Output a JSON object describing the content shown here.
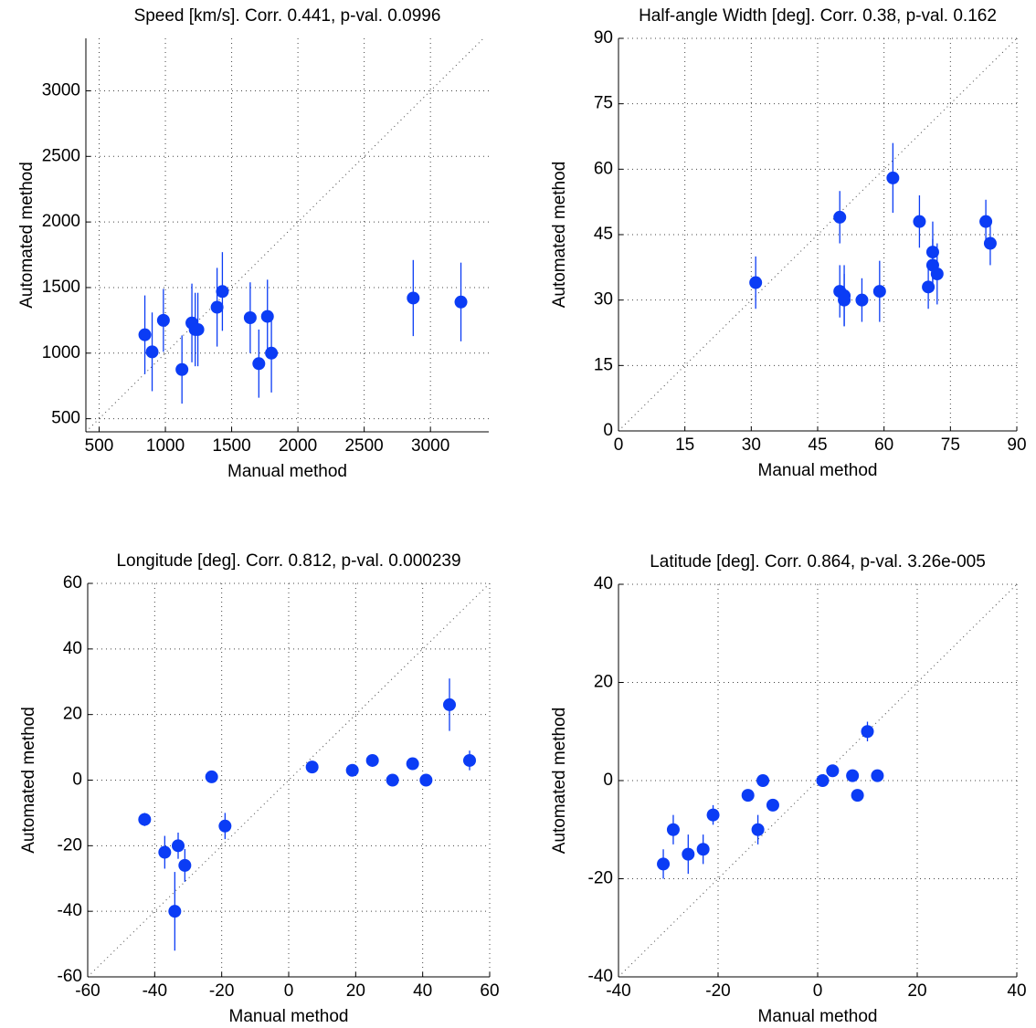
{
  "chart_data": [
    {
      "type": "scatter",
      "title": "Speed [km/s].  Corr. 0.441, p-val. 0.0996",
      "xlabel": "Manual method",
      "ylabel": "Automated method",
      "x": [
        845,
        900,
        985,
        1125,
        1200,
        1225,
        1245,
        1390,
        1430,
        1640,
        1705,
        1770,
        1800,
        2870,
        3230
      ],
      "values": [
        1140,
        1010,
        1250,
        875,
        1230,
        1180,
        1180,
        1350,
        1470,
        1270,
        920,
        1280,
        1000,
        1420,
        1390
      ],
      "errors": [
        300,
        300,
        240,
        260,
        300,
        280,
        280,
        300,
        300,
        270,
        260,
        280,
        300,
        290,
        300
      ],
      "color": "#0b3cf5",
      "xlim": [
        400,
        3440
      ],
      "ylim": [
        400,
        3400
      ],
      "xticks": [
        500,
        1000,
        1500,
        2000,
        2500,
        3000
      ],
      "yticks": [
        500,
        1000,
        1500,
        2000,
        2500,
        3000
      ],
      "grid": true
    },
    {
      "type": "scatter",
      "title": "Half-angle Width [deg].  Corr. 0.38, p-val. 0.162",
      "xlabel": "Manual method",
      "ylabel": "Automated method",
      "x": [
        31,
        50,
        50,
        51,
        51,
        55,
        59,
        62,
        68,
        70,
        71,
        71,
        72,
        83,
        84
      ],
      "values": [
        34,
        49,
        32,
        31,
        30,
        30,
        32,
        58,
        48,
        33,
        38,
        41,
        36,
        48,
        43
      ],
      "errors": [
        6,
        6,
        6,
        7,
        6,
        5,
        7,
        8,
        6,
        5,
        6,
        7,
        7,
        5,
        5
      ],
      "color": "#0b3cf5",
      "xlim": [
        0,
        90
      ],
      "ylim": [
        0,
        90
      ],
      "xticks": [
        0,
        15,
        30,
        45,
        60,
        75,
        90
      ],
      "yticks": [
        0,
        15,
        30,
        45,
        60,
        75,
        90
      ],
      "grid": true
    },
    {
      "type": "scatter",
      "title": "Longitude [deg]. Corr. 0.812, p-val. 0.000239",
      "xlabel": "Manual method",
      "ylabel": "Automated method",
      "x": [
        -43,
        -37,
        -33,
        -31,
        -34,
        -23,
        -19,
        7,
        19,
        25,
        31,
        37,
        41,
        48,
        54
      ],
      "values": [
        -12,
        -22,
        -20,
        -26,
        -40,
        1,
        -14,
        4,
        3,
        6,
        0,
        5,
        0,
        23,
        6
      ],
      "errors": [
        2,
        5,
        4,
        5,
        12,
        1,
        4,
        1,
        1,
        1,
        1,
        1,
        1,
        8,
        3
      ],
      "color": "#0b3cf5",
      "xlim": [
        -60,
        60
      ],
      "ylim": [
        -60,
        60
      ],
      "xticks": [
        -60,
        -40,
        -20,
        0,
        20,
        40,
        60
      ],
      "yticks": [
        -60,
        -40,
        -20,
        0,
        20,
        40,
        60
      ],
      "grid": true
    },
    {
      "type": "scatter",
      "title": "Latitude [deg].  Corr. 0.864, p-val. 3.26e-005",
      "xlabel": "Manual method",
      "ylabel": "Automated method",
      "x": [
        -31,
        -29,
        -26,
        -23,
        -21,
        -14,
        -12,
        -11,
        -9,
        1,
        3,
        7,
        8,
        10,
        12
      ],
      "values": [
        -17,
        -10,
        -15,
        -14,
        -7,
        -3,
        -10,
        0,
        -5,
        0,
        2,
        1,
        -3,
        10,
        1
      ],
      "errors": [
        3,
        3,
        4,
        3,
        2,
        1,
        3,
        1,
        1,
        1,
        1,
        1,
        1,
        2,
        1
      ],
      "color": "#0b3cf5",
      "xlim": [
        -40,
        40
      ],
      "ylim": [
        -40,
        40
      ],
      "xticks": [
        -40,
        -20,
        0,
        20,
        40
      ],
      "yticks": [
        -40,
        -20,
        0,
        20,
        40
      ],
      "grid": true
    }
  ]
}
